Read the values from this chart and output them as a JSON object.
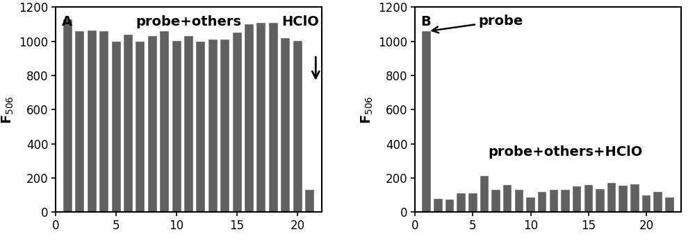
{
  "chart_A": {
    "values": [
      1130,
      1060,
      1065,
      1060,
      1000,
      1040,
      1000,
      1030,
      1060,
      1005,
      1030,
      1000,
      1010,
      1010,
      1050,
      1100,
      1110,
      1110,
      1020,
      1005,
      130
    ],
    "x_positions": [
      1,
      2,
      3,
      4,
      5,
      6,
      7,
      8,
      9,
      10,
      11,
      12,
      13,
      14,
      15,
      16,
      17,
      18,
      19,
      20,
      21
    ],
    "label_A": "A",
    "label_probe_others": "probe+others",
    "label_HClO": "HClO",
    "bar_color": "#606060",
    "ylim": [
      0,
      1200
    ],
    "yticks": [
      0,
      200,
      400,
      600,
      800,
      1000,
      1200
    ],
    "xlim": [
      0,
      22
    ],
    "xticks": [
      0,
      5,
      10,
      15,
      20
    ],
    "ylabel": "F$_{506}$"
  },
  "chart_B": {
    "values": [
      1060,
      80,
      75,
      110,
      110,
      210,
      130,
      160,
      130,
      85,
      120,
      130,
      130,
      150,
      160,
      135,
      170,
      155,
      165,
      100,
      120,
      85
    ],
    "x_positions": [
      1,
      2,
      3,
      4,
      5,
      6,
      7,
      8,
      9,
      10,
      11,
      12,
      13,
      14,
      15,
      16,
      17,
      18,
      19,
      20,
      21,
      22
    ],
    "label_B": "B",
    "label_probe": "probe",
    "label_probe_others_HClO": "probe+others+HClO",
    "bar_color": "#606060",
    "ylim": [
      0,
      1200
    ],
    "yticks": [
      0,
      200,
      400,
      600,
      800,
      1000,
      1200
    ],
    "xlim": [
      0,
      23
    ],
    "xticks": [
      0,
      5,
      10,
      15,
      20
    ],
    "ylabel": "F$_{506}$"
  },
  "bar_width": 0.75,
  "background_color": "#ffffff",
  "font_size_labels": 14,
  "font_size_ticks": 12,
  "font_size_annotations": 14
}
